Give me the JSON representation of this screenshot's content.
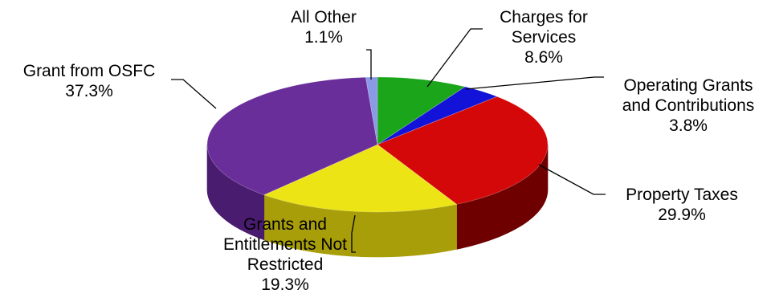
{
  "chart_data": {
    "type": "pie",
    "title": "",
    "three_d": true,
    "legend": "none",
    "slices": [
      {
        "label": "Charges for Services",
        "lines": [
          "Charges for",
          "Services"
        ],
        "value": 8.6,
        "display": "8.6%",
        "color": "#1aa51a",
        "side": "#0d6e0d"
      },
      {
        "label": "Operating Grants and Contributions",
        "lines": [
          "Operating Grants",
          "and Contributions"
        ],
        "value": 3.8,
        "display": "3.8%",
        "color": "#1212d8",
        "side": "#0a0a7a"
      },
      {
        "label": "Property Taxes",
        "lines": [
          "Property Taxes"
        ],
        "value": 29.9,
        "display": "29.9%",
        "color": "#d40808",
        "side": "#6e0000"
      },
      {
        "label": "Grants and Entitlements Not Restricted",
        "lines": [
          "Grants and",
          "Entitlements Not",
          "Restricted"
        ],
        "value": 19.3,
        "display": "19.3%",
        "color": "#ece414",
        "side": "#a89e0a"
      },
      {
        "label": "Grant from OSFC",
        "lines": [
          "Grant from OSFC"
        ],
        "value": 37.3,
        "display": "37.3%",
        "color": "#6a2e9a",
        "side": "#4a1c70"
      },
      {
        "label": "All Other",
        "lines": [
          "All Other"
        ],
        "value": 1.1,
        "display": "1.1%",
        "color": "#8a9ae6",
        "side": "#5a68b0"
      }
    ]
  }
}
